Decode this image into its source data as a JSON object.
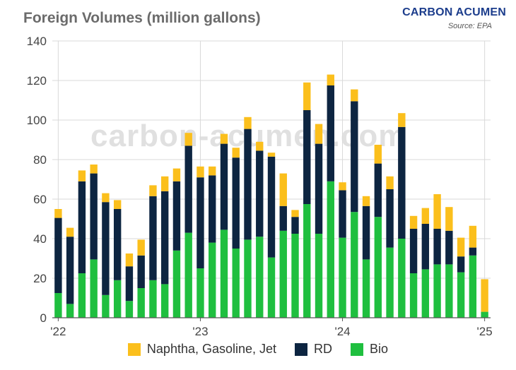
{
  "header": {
    "title": "Foreign Volumes (million gallons)",
    "brand": "CARBON ACUMEN",
    "source": "Source: EPA",
    "watermark": "carbon-acumen.com"
  },
  "colors": {
    "naphtha": "#fbbf1c",
    "rd": "#0d2541",
    "bio": "#1fbf3f",
    "grid": "#d9d9d9",
    "axis": "#555555"
  },
  "chart_data": {
    "type": "bar",
    "stacked": true,
    "title": "Foreign Volumes (million gallons)",
    "xlabel": "",
    "ylabel": "",
    "ylim": [
      0,
      140
    ],
    "yticks": [
      0,
      20,
      40,
      60,
      80,
      100,
      120,
      140
    ],
    "grid": true,
    "legend_position": "bottom",
    "x_tick_labels": [
      {
        "label": "'22",
        "index": 0
      },
      {
        "label": "'23",
        "index": 12
      },
      {
        "label": "'24",
        "index": 24
      },
      {
        "label": "'25",
        "index": 36
      }
    ],
    "categories": [
      "2022-01",
      "2022-02",
      "2022-03",
      "2022-04",
      "2022-05",
      "2022-06",
      "2022-07",
      "2022-08",
      "2022-09",
      "2022-10",
      "2022-11",
      "2022-12",
      "2023-01",
      "2023-02",
      "2023-03",
      "2023-04",
      "2023-05",
      "2023-06",
      "2023-07",
      "2023-08",
      "2023-09",
      "2023-10",
      "2023-11",
      "2023-12",
      "2024-01",
      "2024-02",
      "2024-03",
      "2024-04",
      "2024-05",
      "2024-06",
      "2024-07",
      "2024-08",
      "2024-09",
      "2024-10",
      "2024-11",
      "2024-12",
      "2025-01"
    ],
    "series": [
      {
        "name": "Bio",
        "color": "#1fbf3f",
        "values": [
          12.5,
          7,
          22.5,
          29.5,
          11.5,
          19,
          8.5,
          15,
          19,
          17,
          34,
          43,
          25,
          38,
          44.5,
          35,
          39.5,
          41,
          30.5,
          44,
          42.5,
          57.5,
          42.5,
          69,
          40.5,
          53.5,
          29.5,
          51,
          35.5,
          40,
          22.5,
          24.5,
          27,
          27,
          23,
          31.5,
          3
        ]
      },
      {
        "name": "RD",
        "color": "#0d2541",
        "values": [
          38,
          34,
          46.5,
          43.5,
          47,
          36,
          17.5,
          16.5,
          42.5,
          47,
          35,
          44,
          46,
          34,
          43.5,
          46,
          56,
          43.5,
          51,
          12.5,
          8.5,
          47.5,
          45.5,
          48.5,
          24,
          56,
          27,
          27,
          29.5,
          56.5,
          22.5,
          23,
          18,
          17,
          8,
          4,
          0
        ]
      },
      {
        "name": "Naphtha, Gasoline, Jet",
        "color": "#fbbf1c",
        "values": [
          4.5,
          4.5,
          5.5,
          4.5,
          4.5,
          4.5,
          6.5,
          8,
          5.5,
          7.5,
          6.5,
          6.5,
          5.5,
          4.5,
          5,
          5,
          6,
          4.5,
          2,
          16.5,
          3.5,
          14,
          10,
          5.5,
          4,
          6,
          5,
          9.5,
          6.5,
          7,
          6.5,
          8,
          17.5,
          12,
          9.5,
          11,
          16.5
        ]
      }
    ]
  },
  "legend": [
    {
      "label": "Naphtha, Gasoline, Jet",
      "color": "#fbbf1c"
    },
    {
      "label": "RD",
      "color": "#0d2541"
    },
    {
      "label": "Bio",
      "color": "#1fbf3f"
    }
  ]
}
